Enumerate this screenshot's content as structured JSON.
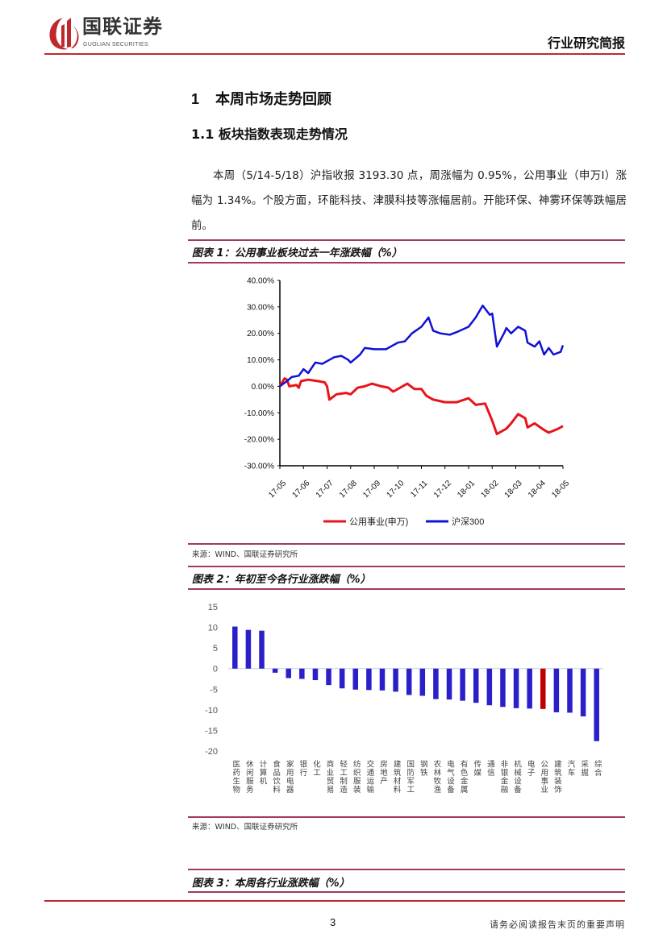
{
  "header": {
    "company_name": "国联证券",
    "company_name_en": "GUOLIAN SECURITIES",
    "doc_type": "行业研究简报"
  },
  "section": {
    "h1_number": "1",
    "h1_title": "本周市场走势回顾",
    "h2": "1.1 板块指数表现走势情况",
    "paragraph": "本周（5/14-5/18）沪指收报 3193.30 点，周涨幅为 0.95%，公用事业（申万Ⅰ）涨幅为 1.34%。个股方面，环能科技、津膜科技等涨幅居前。开能环保、神雾环保等跌幅居前。"
  },
  "figure1": {
    "caption": "图表 1：公用事业板块过去一年涨跌幅（%）",
    "source": "来源：WIND、国联证券研究所"
  },
  "figure2": {
    "caption": "图表 2：年初至今各行业涨跌幅（%）",
    "source": "来源：WIND、国联证券研究所"
  },
  "figure3": {
    "caption": "图表 3：本周各行业涨跌幅（%）"
  },
  "footer": {
    "page_number": "3",
    "disclaimer": "请务必阅读报告末页的重要声明"
  },
  "colors": {
    "brand_red": "#c0282d",
    "rule": "#a33a5a",
    "series_red": "#e8141b",
    "series_blue": "#1010d8",
    "bar_blue": "#2a1fc8",
    "bar_highlight": "#c00000"
  },
  "chart_data": [
    {
      "type": "line",
      "title": "公用事业板块过去一年涨跌幅（%）",
      "x_ticks": [
        "17-05",
        "17-06",
        "17-07",
        "17-08",
        "17-09",
        "17-10",
        "17-11",
        "17-12",
        "18-01",
        "18-02",
        "18-03",
        "18-04",
        "18-05"
      ],
      "y_ticks": [
        "40.00%",
        "30.00%",
        "20.00%",
        "10.00%",
        "0.00%",
        "-10.00%",
        "-20.00%",
        "-30.00%"
      ],
      "ylim": [
        -30,
        40
      ],
      "x_unit": "months since 17-05",
      "legend_position": "bottom",
      "series": [
        {
          "name": "公用事业(申万)",
          "color": "#e8141b",
          "points": [
            [
              0,
              0
            ],
            [
              0.2,
              3
            ],
            [
              0.3,
              2.5
            ],
            [
              0.4,
              0
            ],
            [
              0.7,
              0.5
            ],
            [
              0.8,
              -0.5
            ],
            [
              0.9,
              2
            ],
            [
              1.2,
              2.5
            ],
            [
              1.6,
              2
            ],
            [
              1.9,
              1.5
            ],
            [
              2.0,
              0
            ],
            [
              2.1,
              -5
            ],
            [
              2.4,
              -3
            ],
            [
              2.8,
              -2.5
            ],
            [
              3.0,
              -3
            ],
            [
              3.3,
              -0.5
            ],
            [
              3.6,
              0
            ],
            [
              3.9,
              1
            ],
            [
              4.3,
              0
            ],
            [
              4.6,
              -0.5
            ],
            [
              4.8,
              -2
            ],
            [
              5.2,
              0
            ],
            [
              5.4,
              1
            ],
            [
              5.7,
              -1
            ],
            [
              6.0,
              -1
            ],
            [
              6.2,
              -3.5
            ],
            [
              6.5,
              -5
            ],
            [
              7.0,
              -6
            ],
            [
              7.5,
              -6
            ],
            [
              8.0,
              -4.5
            ],
            [
              8.3,
              -7
            ],
            [
              8.7,
              -6.5
            ],
            [
              9.0,
              -13
            ],
            [
              9.2,
              -18
            ],
            [
              9.6,
              -16
            ],
            [
              9.8,
              -14
            ],
            [
              10.1,
              -10.5
            ],
            [
              10.4,
              -12
            ],
            [
              10.5,
              -15.5
            ],
            [
              10.8,
              -14
            ],
            [
              11.2,
              -16.5
            ],
            [
              11.4,
              -17.5
            ],
            [
              11.8,
              -16
            ],
            [
              12,
              -15
            ]
          ]
        },
        {
          "name": "沪深300",
          "color": "#1010d8",
          "points": [
            [
              0,
              0
            ],
            [
              0.3,
              2
            ],
            [
              0.5,
              3.5
            ],
            [
              0.8,
              4
            ],
            [
              1.0,
              6.5
            ],
            [
              1.2,
              5
            ],
            [
              1.5,
              9
            ],
            [
              1.8,
              8.5
            ],
            [
              2.0,
              9.5
            ],
            [
              2.3,
              11
            ],
            [
              2.6,
              11.5
            ],
            [
              2.9,
              10
            ],
            [
              3.0,
              9
            ],
            [
              3.4,
              12
            ],
            [
              3.6,
              14.5
            ],
            [
              4.0,
              14
            ],
            [
              4.5,
              14
            ],
            [
              5.0,
              16.5
            ],
            [
              5.3,
              17
            ],
            [
              5.6,
              20
            ],
            [
              6.0,
              22.5
            ],
            [
              6.3,
              26
            ],
            [
              6.5,
              21
            ],
            [
              6.8,
              20
            ],
            [
              7.2,
              19.5
            ],
            [
              7.5,
              20.5
            ],
            [
              8.0,
              22.5
            ],
            [
              8.3,
              26
            ],
            [
              8.6,
              30.5
            ],
            [
              8.9,
              27
            ],
            [
              9.0,
              27.5
            ],
            [
              9.2,
              15
            ],
            [
              9.5,
              20
            ],
            [
              9.6,
              22
            ],
            [
              9.8,
              20
            ],
            [
              10.1,
              22.5
            ],
            [
              10.4,
              21
            ],
            [
              10.5,
              16.5
            ],
            [
              10.8,
              15
            ],
            [
              11.0,
              17
            ],
            [
              11.2,
              12
            ],
            [
              11.4,
              14.5
            ],
            [
              11.6,
              12
            ],
            [
              11.9,
              13
            ],
            [
              12,
              15.5
            ]
          ]
        }
      ]
    },
    {
      "type": "bar",
      "title": "年初至今各行业涨跌幅（%）",
      "ylim": [
        -20,
        15
      ],
      "y_ticks": [
        "15",
        "10",
        "5",
        "0",
        "-5",
        "-10",
        "-15",
        "-20"
      ],
      "highlight": "公用事业",
      "categories": [
        "医药生物",
        "休闲服务",
        "计算机",
        "食品饮料",
        "家用电器",
        "银行",
        "化工",
        "商业贸易",
        "轻工制造",
        "纺织服装",
        "交通运输",
        "房地产",
        "建筑材料",
        "国防军工",
        "钢铁",
        "农林牧渔",
        "电气设备",
        "有色金属",
        "传媒",
        "通信",
        "非银金融",
        "机械设备",
        "电子",
        "公用事业",
        "建筑装饰",
        "汽车",
        "采掘",
        "综合"
      ],
      "values": [
        10.2,
        9.4,
        9.2,
        -1.0,
        -2.3,
        -2.5,
        -2.8,
        -4.0,
        -4.8,
        -5.1,
        -5.2,
        -5.3,
        -5.6,
        -6.4,
        -6.6,
        -7.4,
        -7.5,
        -7.8,
        -8.3,
        -8.9,
        -9.3,
        -9.6,
        -9.7,
        -9.8,
        -10.6,
        -10.7,
        -11.6,
        -17.6
      ]
    }
  ]
}
